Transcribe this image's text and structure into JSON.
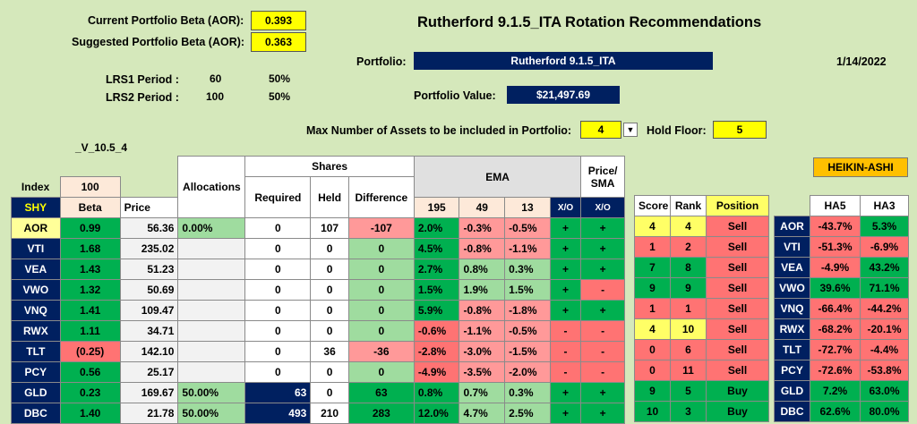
{
  "header": {
    "current_beta_label": "Current Portfolio Beta (AOR):",
    "current_beta_value": "0.393",
    "suggested_beta_label": "Suggested Portfolio Beta (AOR):",
    "suggested_beta_value": "0.363",
    "title": "Rutherford 9.1.5_ITA Rotation Recommendations",
    "portfolio_label": "Portfolio:",
    "portfolio_value": "Rutherford 9.1.5_ITA",
    "date": "1/14/2022",
    "lrs1_label": "LRS1 Period :",
    "lrs1_period": "60",
    "lrs1_pct": "50%",
    "lrs2_label": "LRS2 Period :",
    "lrs2_period": "100",
    "lrs2_pct": "50%",
    "portfolio_value_label": "Portfolio Value:",
    "portfolio_value_amount": "$21,497.69",
    "max_assets_label": "Max Number of Assets to be included in Portfolio:",
    "max_assets_value": "4",
    "hold_floor_label": "Hold Floor:",
    "hold_floor_value": "5",
    "version": "_V_10.5_4",
    "heikin_ashi": "HEIKIN-ASHI"
  },
  "table": {
    "index_label": "Index",
    "index_value": "100",
    "allocations_label": "Allocations",
    "shares_label": "Shares",
    "ema_label": "EMA",
    "price_sma_label": "Price/\nSMA",
    "col_beta": "Beta",
    "col_price": "Price",
    "col_required": "Required",
    "col_held": "Held",
    "col_difference": "Difference",
    "col_195": "195",
    "col_49": "49",
    "col_13": "13",
    "col_xo1": "X/O",
    "col_xo2": "X/O",
    "col_score": "Score",
    "col_rank": "Rank",
    "col_position": "Position",
    "col_ha5": "HA5",
    "col_ha3": "HA3",
    "shy": "SHY"
  },
  "rows": [
    {
      "t": "AOR",
      "beta": "0.99",
      "price": "56.36",
      "alloc": "0.00%",
      "req": "0",
      "held": "107",
      "diff": "-107",
      "e195": "2.0%",
      "e49": "-0.3%",
      "e13": "-0.5%",
      "xo1": "+",
      "xo2": "+",
      "score": "4",
      "rank": "4",
      "pos": "Sell",
      "t2": "AOR",
      "ha5": "-43.7%",
      "ha3": "5.3%"
    },
    {
      "t": "VTI",
      "beta": "1.68",
      "price": "235.02",
      "alloc": "",
      "req": "0",
      "held": "0",
      "diff": "0",
      "e195": "4.5%",
      "e49": "-0.8%",
      "e13": "-1.1%",
      "xo1": "+",
      "xo2": "+",
      "score": "1",
      "rank": "2",
      "pos": "Sell",
      "t2": "VTI",
      "ha5": "-51.3%",
      "ha3": "-6.9%"
    },
    {
      "t": "VEA",
      "beta": "1.43",
      "price": "51.23",
      "alloc": "",
      "req": "0",
      "held": "0",
      "diff": "0",
      "e195": "2.7%",
      "e49": "0.8%",
      "e13": "0.3%",
      "xo1": "+",
      "xo2": "+",
      "score": "7",
      "rank": "8",
      "pos": "Sell",
      "t2": "VEA",
      "ha5": "-4.9%",
      "ha3": "43.2%"
    },
    {
      "t": "VWO",
      "beta": "1.32",
      "price": "50.69",
      "alloc": "",
      "req": "0",
      "held": "0",
      "diff": "0",
      "e195": "1.5%",
      "e49": "1.9%",
      "e13": "1.5%",
      "xo1": "+",
      "xo2": "-",
      "score": "9",
      "rank": "9",
      "pos": "Sell",
      "t2": "VWO",
      "ha5": "39.6%",
      "ha3": "71.1%"
    },
    {
      "t": "VNQ",
      "beta": "1.41",
      "price": "109.47",
      "alloc": "",
      "req": "0",
      "held": "0",
      "diff": "0",
      "e195": "5.9%",
      "e49": "-0.8%",
      "e13": "-1.8%",
      "xo1": "+",
      "xo2": "+",
      "score": "1",
      "rank": "1",
      "pos": "Sell",
      "t2": "VNQ",
      "ha5": "-66.4%",
      "ha3": "-44.2%"
    },
    {
      "t": "RWX",
      "beta": "1.11",
      "price": "34.71",
      "alloc": "",
      "req": "0",
      "held": "0",
      "diff": "0",
      "e195": "-0.6%",
      "e49": "-1.1%",
      "e13": "-0.5%",
      "xo1": "-",
      "xo2": "-",
      "score": "4",
      "rank": "10",
      "pos": "Sell",
      "t2": "RWX",
      "ha5": "-68.2%",
      "ha3": "-20.1%"
    },
    {
      "t": "TLT",
      "beta": "(0.25)",
      "price": "142.10",
      "alloc": "",
      "req": "0",
      "held": "36",
      "diff": "-36",
      "e195": "-2.8%",
      "e49": "-3.0%",
      "e13": "-1.5%",
      "xo1": "-",
      "xo2": "-",
      "score": "0",
      "rank": "6",
      "pos": "Sell",
      "t2": "TLT",
      "ha5": "-72.7%",
      "ha3": "-4.4%"
    },
    {
      "t": "PCY",
      "beta": "0.56",
      "price": "25.17",
      "alloc": "",
      "req": "0",
      "held": "0",
      "diff": "0",
      "e195": "-4.9%",
      "e49": "-3.5%",
      "e13": "-2.0%",
      "xo1": "-",
      "xo2": "-",
      "score": "0",
      "rank": "11",
      "pos": "Sell",
      "t2": "PCY",
      "ha5": "-72.6%",
      "ha3": "-53.8%"
    },
    {
      "t": "GLD",
      "beta": "0.23",
      "price": "169.67",
      "alloc": "50.00%",
      "req": "63",
      "held": "0",
      "diff": "63",
      "e195": "0.8%",
      "e49": "0.7%",
      "e13": "0.3%",
      "xo1": "+",
      "xo2": "+",
      "score": "9",
      "rank": "5",
      "pos": "Buy",
      "t2": "GLD",
      "ha5": "7.2%",
      "ha3": "63.0%"
    },
    {
      "t": "DBC",
      "beta": "1.40",
      "price": "21.78",
      "alloc": "50.00%",
      "req": "493",
      "held": "210",
      "diff": "283",
      "e195": "12.0%",
      "e49": "4.7%",
      "e13": "2.5%",
      "xo1": "+",
      "xo2": "+",
      "score": "10",
      "rank": "3",
      "pos": "Buy",
      "t2": "DBC",
      "ha5": "62.6%",
      "ha3": "80.0%"
    }
  ],
  "colors": {
    "background": "#d5e8bb",
    "navy": "#002060",
    "highlight_yellow": "#ffff00",
    "positive_green": "#00b050",
    "negative_red": "#ff7373"
  }
}
